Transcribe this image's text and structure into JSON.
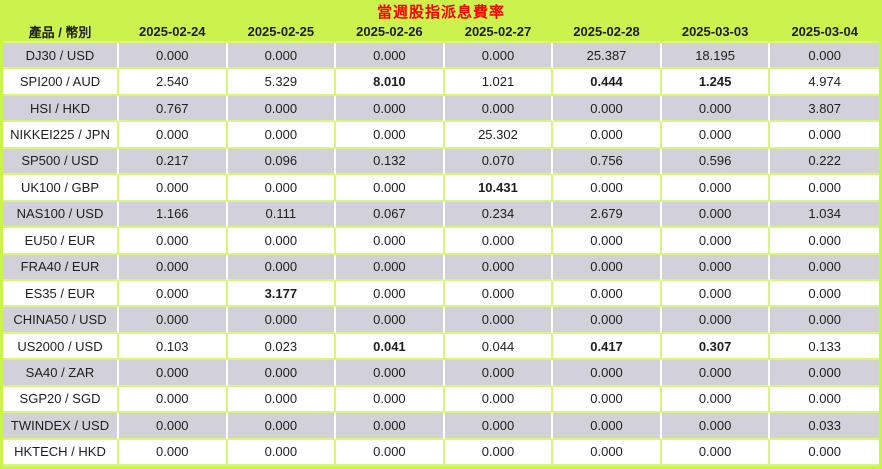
{
  "title": "當週股指派息費率",
  "colors": {
    "background": "#ccf24e",
    "grid_line": "#d7f67b",
    "row_alt_gray": "#d2d1da",
    "row_white": "#ffffff",
    "title_red": "#ff0000",
    "text": "#1e1e1e"
  },
  "table": {
    "header": [
      "產品 / 幣別",
      "2025-02-24",
      "2025-02-25",
      "2025-02-26",
      "2025-02-27",
      "2025-02-28",
      "2025-03-03",
      "2025-03-04"
    ],
    "rows": [
      {
        "label": "DJ30 / USD",
        "values": [
          "0.000",
          "0.000",
          "0.000",
          "0.000",
          "25.387",
          "18.195",
          "0.000"
        ],
        "bold": []
      },
      {
        "label": "SPI200 / AUD",
        "values": [
          "2.540",
          "5.329",
          "8.010",
          "1.021",
          "0.444",
          "1.245",
          "4.974"
        ],
        "bold": [
          2,
          4,
          5
        ]
      },
      {
        "label": "HSI / HKD",
        "values": [
          "0.767",
          "0.000",
          "0.000",
          "0.000",
          "0.000",
          "0.000",
          "3.807"
        ],
        "bold": []
      },
      {
        "label": "NIKKEI225 / JPN",
        "values": [
          "0.000",
          "0.000",
          "0.000",
          "25.302",
          "0.000",
          "0.000",
          "0.000"
        ],
        "bold": []
      },
      {
        "label": "SP500 / USD",
        "values": [
          "0.217",
          "0.096",
          "0.132",
          "0.070",
          "0.756",
          "0.596",
          "0.222"
        ],
        "bold": []
      },
      {
        "label": "UK100 / GBP",
        "values": [
          "0.000",
          "0.000",
          "0.000",
          "10.431",
          "0.000",
          "0.000",
          "0.000"
        ],
        "bold": [
          3
        ]
      },
      {
        "label": "NAS100 / USD",
        "values": [
          "1.166",
          "0.111",
          "0.067",
          "0.234",
          "2.679",
          "0.000",
          "1.034"
        ],
        "bold": []
      },
      {
        "label": "EU50 / EUR",
        "values": [
          "0.000",
          "0.000",
          "0.000",
          "0.000",
          "0.000",
          "0.000",
          "0.000"
        ],
        "bold": []
      },
      {
        "label": "FRA40 / EUR",
        "values": [
          "0.000",
          "0.000",
          "0.000",
          "0.000",
          "0.000",
          "0.000",
          "0.000"
        ],
        "bold": []
      },
      {
        "label": "ES35 / EUR",
        "values": [
          "0.000",
          "3.177",
          "0.000",
          "0.000",
          "0.000",
          "0.000",
          "0.000"
        ],
        "bold": [
          1
        ]
      },
      {
        "label": "CHINA50 / USD",
        "values": [
          "0.000",
          "0.000",
          "0.000",
          "0.000",
          "0.000",
          "0.000",
          "0.000"
        ],
        "bold": []
      },
      {
        "label": "US2000 / USD",
        "values": [
          "0.103",
          "0.023",
          "0.041",
          "0.044",
          "0.417",
          "0.307",
          "0.133"
        ],
        "bold": [
          2,
          4,
          5
        ]
      },
      {
        "label": "SA40 / ZAR",
        "values": [
          "0.000",
          "0.000",
          "0.000",
          "0.000",
          "0.000",
          "0.000",
          "0.000"
        ],
        "bold": []
      },
      {
        "label": "SGP20 / SGD",
        "values": [
          "0.000",
          "0.000",
          "0.000",
          "0.000",
          "0.000",
          "0.000",
          "0.000"
        ],
        "bold": []
      },
      {
        "label": "TWINDEX / USD",
        "values": [
          "0.000",
          "0.000",
          "0.000",
          "0.000",
          "0.000",
          "0.000",
          "0.033"
        ],
        "bold": []
      },
      {
        "label": "HKTECH / HKD",
        "values": [
          "0.000",
          "0.000",
          "0.000",
          "0.000",
          "0.000",
          "0.000",
          "0.000"
        ],
        "bold": []
      }
    ]
  },
  "chart_data": {
    "type": "table",
    "title": "當週股指派息費率",
    "categories": [
      "2025-02-24",
      "2025-02-25",
      "2025-02-26",
      "2025-02-27",
      "2025-02-28",
      "2025-03-03",
      "2025-03-04"
    ],
    "series": [
      {
        "name": "DJ30 / USD",
        "values": [
          0.0,
          0.0,
          0.0,
          0.0,
          25.387,
          18.195,
          0.0
        ]
      },
      {
        "name": "SPI200 / AUD",
        "values": [
          2.54,
          5.329,
          8.01,
          1.021,
          0.444,
          1.245,
          4.974
        ]
      },
      {
        "name": "HSI / HKD",
        "values": [
          0.767,
          0.0,
          0.0,
          0.0,
          0.0,
          0.0,
          3.807
        ]
      },
      {
        "name": "NIKKEI225 / JPN",
        "values": [
          0.0,
          0.0,
          0.0,
          25.302,
          0.0,
          0.0,
          0.0
        ]
      },
      {
        "name": "SP500 / USD",
        "values": [
          0.217,
          0.096,
          0.132,
          0.07,
          0.756,
          0.596,
          0.222
        ]
      },
      {
        "name": "UK100 / GBP",
        "values": [
          0.0,
          0.0,
          0.0,
          10.431,
          0.0,
          0.0,
          0.0
        ]
      },
      {
        "name": "NAS100 / USD",
        "values": [
          1.166,
          0.111,
          0.067,
          0.234,
          2.679,
          0.0,
          1.034
        ]
      },
      {
        "name": "EU50 / EUR",
        "values": [
          0.0,
          0.0,
          0.0,
          0.0,
          0.0,
          0.0,
          0.0
        ]
      },
      {
        "name": "FRA40 / EUR",
        "values": [
          0.0,
          0.0,
          0.0,
          0.0,
          0.0,
          0.0,
          0.0
        ]
      },
      {
        "name": "ES35 / EUR",
        "values": [
          0.0,
          3.177,
          0.0,
          0.0,
          0.0,
          0.0,
          0.0
        ]
      },
      {
        "name": "CHINA50 / USD",
        "values": [
          0.0,
          0.0,
          0.0,
          0.0,
          0.0,
          0.0,
          0.0
        ]
      },
      {
        "name": "US2000 / USD",
        "values": [
          0.103,
          0.023,
          0.041,
          0.044,
          0.417,
          0.307,
          0.133
        ]
      },
      {
        "name": "SA40 / ZAR",
        "values": [
          0.0,
          0.0,
          0.0,
          0.0,
          0.0,
          0.0,
          0.0
        ]
      },
      {
        "name": "SGP20 / SGD",
        "values": [
          0.0,
          0.0,
          0.0,
          0.0,
          0.0,
          0.0,
          0.0
        ]
      },
      {
        "name": "TWINDEX / USD",
        "values": [
          0.0,
          0.0,
          0.0,
          0.0,
          0.0,
          0.0,
          0.033
        ]
      },
      {
        "name": "HKTECH / HKD",
        "values": [
          0.0,
          0.0,
          0.0,
          0.0,
          0.0,
          0.0,
          0.0
        ]
      }
    ]
  }
}
